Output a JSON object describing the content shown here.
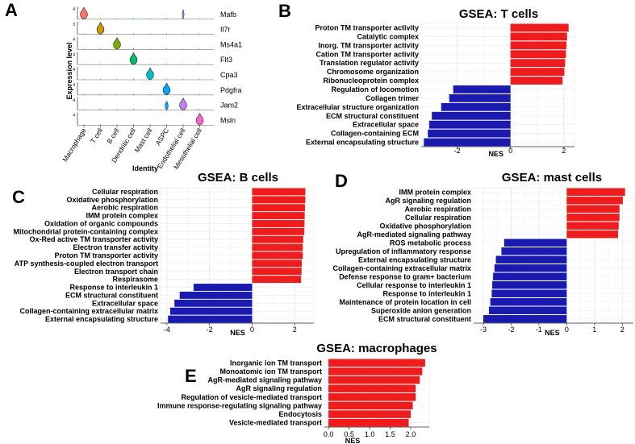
{
  "figure": {
    "panel_letters": [
      "A",
      "B",
      "C",
      "D",
      "E"
    ],
    "panel_a": {
      "ylabel": "Expression level",
      "xlabel": "Identity",
      "cell_types": [
        "Macrophage",
        "T cell",
        "B cell",
        "Dendritic cell",
        "Mast cell",
        "ASPC",
        "Endothelial cell",
        "Mesothelial cell"
      ],
      "genes": [
        "Mafb",
        "Il7r",
        "Ms4a1",
        "Flt3",
        "Cpa3",
        "Pdgfra",
        "Jam2",
        "Msln"
      ],
      "colors": [
        "#f8766d",
        "#cd9600",
        "#7cae00",
        "#00be67",
        "#00bfc4",
        "#00a9ff",
        "#c77cff",
        "#ff61cc"
      ],
      "violin_scale": [
        4,
        3,
        4,
        4,
        4,
        4,
        4,
        4
      ]
    }
  },
  "chart_data": [
    {
      "type": "bar",
      "panel": "B",
      "title": "GSEA: T cells",
      "xlabel": "NES",
      "xlim": [
        -3.35,
        2.4
      ],
      "xticks": [
        -2,
        0,
        2
      ],
      "categories": [
        "Proton TM transporter activity",
        "Catalytic complex",
        "Inorg. TM transporter activity",
        "Cation TM transporter activity",
        "Translation regulator activity",
        "Chromosome organization",
        "Ribonucleoprotein complex",
        "Regulation of locomotion",
        "Collagen trimer",
        "Extracellular structure organization",
        "ECM structural constituent",
        "Extracellular space",
        "Collagen-containing ECM",
        "External encapsulating structure"
      ],
      "values": [
        2.18,
        2.12,
        2.1,
        2.08,
        2.05,
        2.02,
        1.95,
        -2.15,
        -2.3,
        -2.6,
        -2.95,
        -3.05,
        -3.1,
        -3.25
      ]
    },
    {
      "type": "bar",
      "panel": "C",
      "title": "GSEA: B cells",
      "xlabel": "NES",
      "xlim": [
        -4.3,
        2.9
      ],
      "xticks": [
        -4,
        -2,
        0,
        2
      ],
      "categories": [
        "Cellular respiration",
        "Oxidative phosphorylation",
        "Aerobic respiration",
        "IMM protein complex",
        "Oxidation of organic compounds",
        "Mitochondrial protein-containing complex",
        "Ox-Red active TM transporter activity",
        "Electron transfer activity",
        "Proton TM transporter activity",
        "ATP synthesis-coupled electron transport",
        "Electron transport chain",
        "Respirasome",
        "Response to interleukin 1",
        "ECM structural constituent",
        "Extracellular space",
        "Collagen-containing extracellular matrix",
        "External encapsulating structure"
      ],
      "values": [
        2.5,
        2.5,
        2.48,
        2.47,
        2.46,
        2.45,
        2.4,
        2.38,
        2.38,
        2.33,
        2.32,
        2.3,
        -2.75,
        -3.4,
        -3.65,
        -3.85,
        -3.95
      ]
    },
    {
      "type": "bar",
      "panel": "D",
      "title": "GSEA: mast cells",
      "xlabel": "NES",
      "xlim": [
        -3.35,
        2.4
      ],
      "xticks": [
        -3,
        -2,
        -1,
        0,
        1,
        2
      ],
      "categories": [
        "IMM protein complex",
        "AgR signaling regulation",
        "Aerobic respiration",
        "Cellular respiration",
        "Oxidative phosphorylation",
        "AgR-mediated signaling pathway",
        "ROS metabolic process",
        "Upregulation of inflammatory response",
        "External encapsulating structure",
        "Collagen-containing extracellular matrix",
        "Defense response to gram+ bacterium",
        "Cellular response to interleukin 1",
        "Response to interleukin 1",
        "Maintenance of protein location in cell",
        "Superoxide anion generation",
        "ECM structural constituent"
      ],
      "values": [
        2.1,
        2.02,
        1.9,
        1.9,
        1.87,
        1.85,
        -2.25,
        -2.35,
        -2.55,
        -2.6,
        -2.65,
        -2.68,
        -2.7,
        -2.75,
        -2.8,
        -3.0
      ]
    },
    {
      "type": "bar",
      "panel": "E",
      "title": "GSEA: macrophages",
      "xlabel": "NES",
      "xlim": [
        -0.1,
        2.45
      ],
      "xticks": [
        "0.0",
        "0.5",
        "1.0",
        "1.5",
        "2.0"
      ],
      "categories": [
        "Inorganic ion TM transport",
        "Monoatomic ion TM transport",
        "AgR-mediated signaling pathway",
        "AgR signaling regulation",
        "Regulation of vesicle-mediated transport",
        "Immune response-regulating signaling pathway",
        "Endocytosis",
        "Vesicle-mediated transport"
      ],
      "values": [
        2.35,
        2.28,
        2.22,
        2.12,
        2.12,
        2.05,
        2.0,
        1.95
      ]
    }
  ]
}
